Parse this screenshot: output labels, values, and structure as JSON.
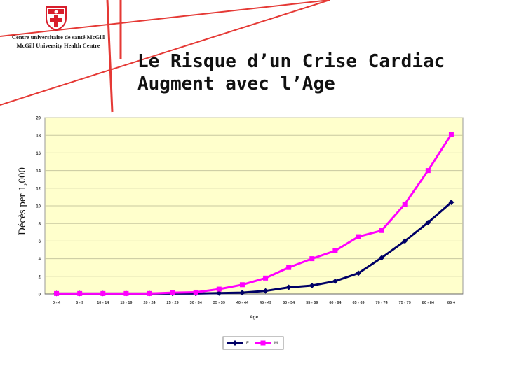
{
  "header": {
    "logo_line1": "Centre universitaire de santé McGill",
    "logo_line2": "McGill University Health Centre",
    "title_line1": "Le Risque d’un Crise Cardiac",
    "title_line2": "Augment avec l’Age"
  },
  "colors": {
    "plot_background": "#FFFFCC",
    "series_F": "#000066",
    "series_M": "#FF00FF",
    "logo_red": "#D81E2C"
  },
  "icons": {
    "logo": "shield-cross-icon"
  },
  "chart_data": {
    "type": "line",
    "ylabel": "Décès per 1,000",
    "xlabel": "Age",
    "ylim": [
      0,
      20
    ],
    "yticks": [
      0,
      2,
      4,
      6,
      8,
      10,
      12,
      14,
      16,
      18,
      20
    ],
    "grid": true,
    "legend": "bottom-center",
    "categories": [
      "0 - 4",
      "5 - 9",
      "10 - 14",
      "15 - 19",
      "20 - 24",
      "25 - 29",
      "30 - 34",
      "35 - 39",
      "40 - 44",
      "45 - 49",
      "50 - 54",
      "55 - 59",
      "60 - 64",
      "65 - 69",
      "70 - 74",
      "75 - 79",
      "80 - 84",
      "85 +"
    ],
    "series": [
      {
        "name": "F",
        "marker": "diamond",
        "values": [
          0.05,
          0.05,
          0.05,
          0.05,
          0.05,
          0.05,
          0.05,
          0.1,
          0.15,
          0.35,
          0.75,
          0.95,
          1.45,
          2.35,
          4.1,
          6.0,
          8.1,
          10.4
        ]
      },
      {
        "name": "M",
        "marker": "square",
        "values": [
          0.05,
          0.05,
          0.05,
          0.05,
          0.05,
          0.15,
          0.2,
          0.55,
          1.05,
          1.8,
          3.0,
          4.0,
          4.9,
          6.5,
          7.2,
          10.2,
          14.0,
          18.1
        ]
      }
    ]
  }
}
